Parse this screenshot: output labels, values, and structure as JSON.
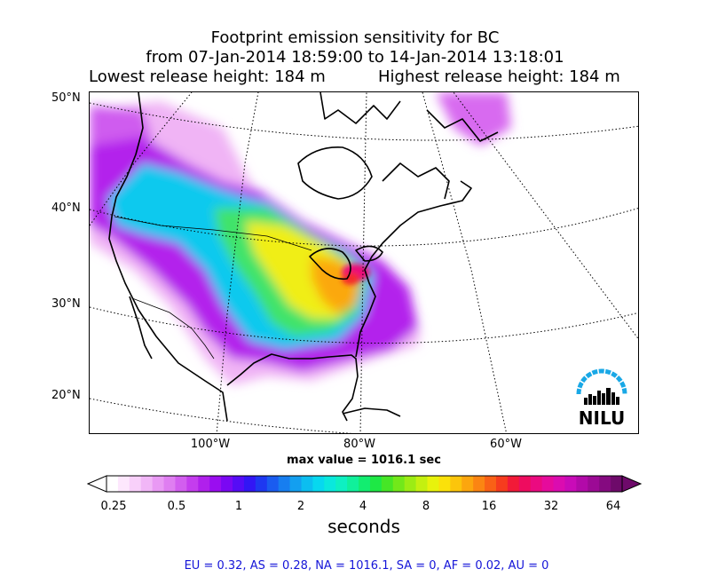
{
  "title": {
    "line1": "Footprint emission sensitivity for BC",
    "line2": "from 07-Jan-2014 18:59:00 to 14-Jan-2014 13:18:01",
    "lowest_release": "Lowest release height: 184 m",
    "highest_release": "Highest release height: 184 m"
  },
  "map": {
    "lat_labels": [
      "50°N",
      "40°N",
      "30°N",
      "20°N"
    ],
    "lon_labels": [
      "100°W",
      "80°W",
      "60°W"
    ],
    "max_value_text": "max value = 1016.1 sec"
  },
  "colorbar": {
    "ticks": [
      "0.25",
      "0.5",
      "1",
      "2",
      "4",
      "8",
      "16",
      "32",
      "64"
    ],
    "unit": "seconds",
    "colors": [
      "#ffffff",
      "#fde7fd",
      "#f8d0fa",
      "#f1b6f7",
      "#e999f4",
      "#df7ef1",
      "#d25eef",
      "#c43dee",
      "#b020ec",
      "#9a0df0",
      "#7a08f3",
      "#560cf6",
      "#3216f5",
      "#1e38f1",
      "#1a5cf0",
      "#177ef0",
      "#139ff0",
      "#0cbef0",
      "#07d8ef",
      "#0ae8dd",
      "#0ef0c2",
      "#10f09b",
      "#12ed70",
      "#1ee845",
      "#46e626",
      "#72e81a",
      "#9cec14",
      "#c4f010",
      "#e8f20c",
      "#fbe10a",
      "#fcc50b",
      "#fca60e",
      "#fb8512",
      "#f96116",
      "#f63c1e",
      "#f21a38",
      "#ee0c5f",
      "#eb0a80",
      "#e60b9c",
      "#db0cb0",
      "#c90bb8",
      "#b20aa9",
      "#9c0a95",
      "#850a80",
      "#6e0a6a"
    ]
  },
  "summary": "EU = 0.32,  AS = 0.28,  NA = 1016.1,  SA = 0,  AF = 0.02,  AU = 0",
  "logo": {
    "text": "NILU",
    "arc_color": "#19a8e6"
  }
}
